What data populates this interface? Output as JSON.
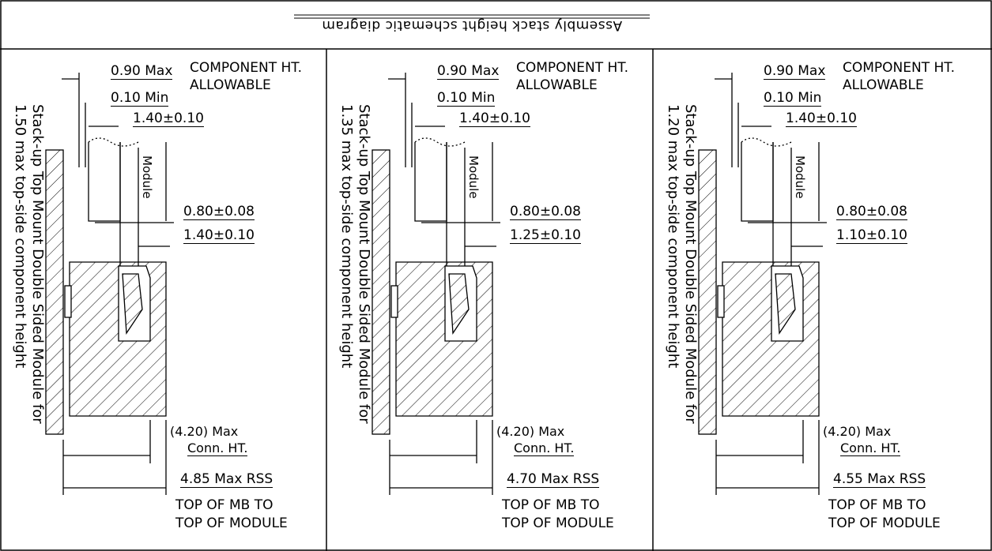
{
  "title": "Assembly stack height schematic diagram",
  "panels": [
    {
      "stack_line1": "Stack-up Top Mount Double Sided Module for",
      "stack_line2": "1.50 max top-side component height",
      "comp_ht": "0.90 Max",
      "comp_label1": "COMPONENT HT.",
      "comp_label2": "ALLOWABLE",
      "min": "0.10 Min",
      "board": "1.40±0.10",
      "module": "Module",
      "dim_a": "0.80±0.08",
      "dim_b": "1.40±0.10",
      "conn_ht": "(4.20) Max",
      "conn_label": "Conn. HT.",
      "rss": "4.85 Max RSS",
      "top1": "TOP OF MB TO",
      "top2": "TOP OF MODULE"
    },
    {
      "stack_line1": "Stack-up Top Mount Double Sided Module for",
      "stack_line2": "1.35 max top-side component height",
      "comp_ht": "0.90 Max",
      "comp_label1": "COMPONENT HT.",
      "comp_label2": "ALLOWABLE",
      "min": "0.10 Min",
      "board": "1.40±0.10",
      "module": "Module",
      "dim_a": "0.80±0.08",
      "dim_b": "1.25±0.10",
      "conn_ht": "(4.20) Max",
      "conn_label": "Conn. HT.",
      "rss": "4.70 Max RSS",
      "top1": "TOP OF MB TO",
      "top2": "TOP OF MODULE"
    },
    {
      "stack_line1": "Stack-up Top Mount Double Sided Module for",
      "stack_line2": "1.20 max top-side component height",
      "comp_ht": "0.90 Max",
      "comp_label1": "COMPONENT HT.",
      "comp_label2": "ALLOWABLE",
      "min": "0.10 Min",
      "board": "1.40±0.10",
      "module": "Module",
      "dim_a": "0.80±0.08",
      "dim_b": "1.10±0.10",
      "conn_ht": "(4.20) Max",
      "conn_label": "Conn. HT.",
      "rss": "4.55 Max RSS",
      "top1": "TOP OF MB TO",
      "top2": "TOP OF MODULE"
    }
  ]
}
